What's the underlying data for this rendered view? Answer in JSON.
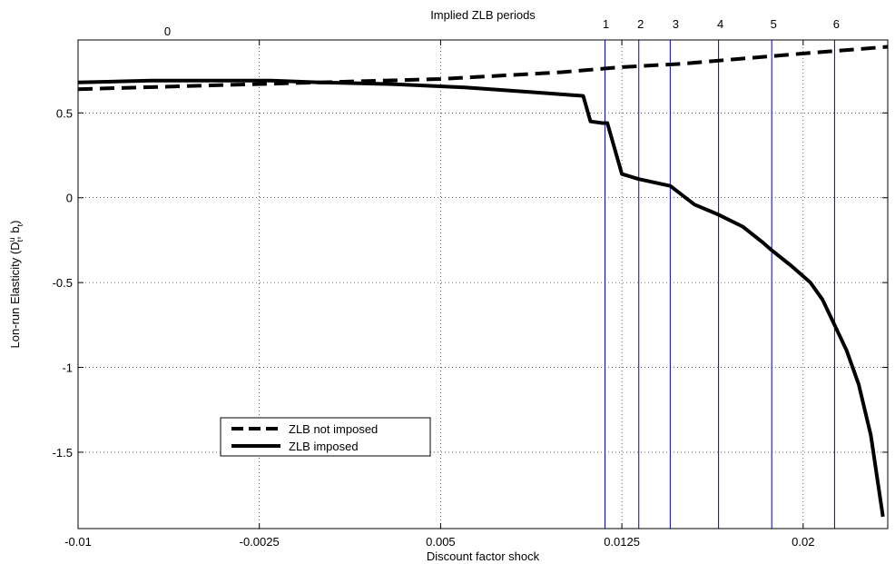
{
  "chart_data": {
    "type": "line",
    "title": "Implied ZLB periods",
    "xlabel": "Discount factor shock",
    "ylabel": "Lon-run Elasticity (D^u_t , b_t)",
    "xlim": [
      -0.01,
      0.0235
    ],
    "ylim": [
      -1.95,
      0.93
    ],
    "xticks": [
      -0.01,
      -0.0025,
      0.005,
      0.0125,
      0.02
    ],
    "xtick_labels": [
      "-0.01",
      "-0.0025",
      "0.005",
      "0.0125",
      "0.02"
    ],
    "yticks": [
      -1.5,
      -1,
      -0.5,
      0,
      0.5
    ],
    "ytick_labels": [
      "-1.5",
      "-1",
      "-0.5",
      "0",
      "0.5"
    ],
    "grid": true,
    "legend_position": "lower-left",
    "zlb_period_lines": {
      "x": [
        0.0118,
        0.0132,
        0.0145,
        0.0165,
        0.0187,
        0.0213
      ],
      "labels": [
        "1",
        "2",
        "3",
        "4",
        "5",
        "6"
      ],
      "color": "#0000cc"
    },
    "zlb_zero_label": {
      "text": "0",
      "x": -0.0063
    },
    "series": [
      {
        "name": "ZLB not imposed",
        "style": "dashed",
        "color": "#000000",
        "x": [
          -0.01,
          -0.005,
          0.0,
          0.005,
          0.01,
          0.0125,
          0.015,
          0.0175,
          0.02,
          0.0235
        ],
        "y": [
          0.64,
          0.66,
          0.68,
          0.7,
          0.74,
          0.77,
          0.79,
          0.82,
          0.85,
          0.89
        ]
      },
      {
        "name": "ZLB imposed",
        "style": "solid",
        "color": "#000000",
        "x": [
          -0.01,
          -0.007,
          -0.004,
          -0.002,
          0.0,
          0.003,
          0.006,
          0.009,
          0.0109,
          0.0112,
          0.0117,
          0.0119,
          0.0125,
          0.0132,
          0.0145,
          0.0155,
          0.0165,
          0.0175,
          0.0183,
          0.0187,
          0.0195,
          0.0203,
          0.0208,
          0.0213,
          0.0218,
          0.0223,
          0.0228,
          0.0233
        ],
        "y": [
          0.68,
          0.69,
          0.69,
          0.69,
          0.68,
          0.67,
          0.65,
          0.62,
          0.6,
          0.45,
          0.44,
          0.44,
          0.14,
          0.11,
          0.07,
          -0.04,
          -0.1,
          -0.17,
          -0.26,
          -0.31,
          -0.4,
          -0.5,
          -0.6,
          -0.75,
          -0.9,
          -1.1,
          -1.4,
          -1.88
        ]
      }
    ]
  }
}
